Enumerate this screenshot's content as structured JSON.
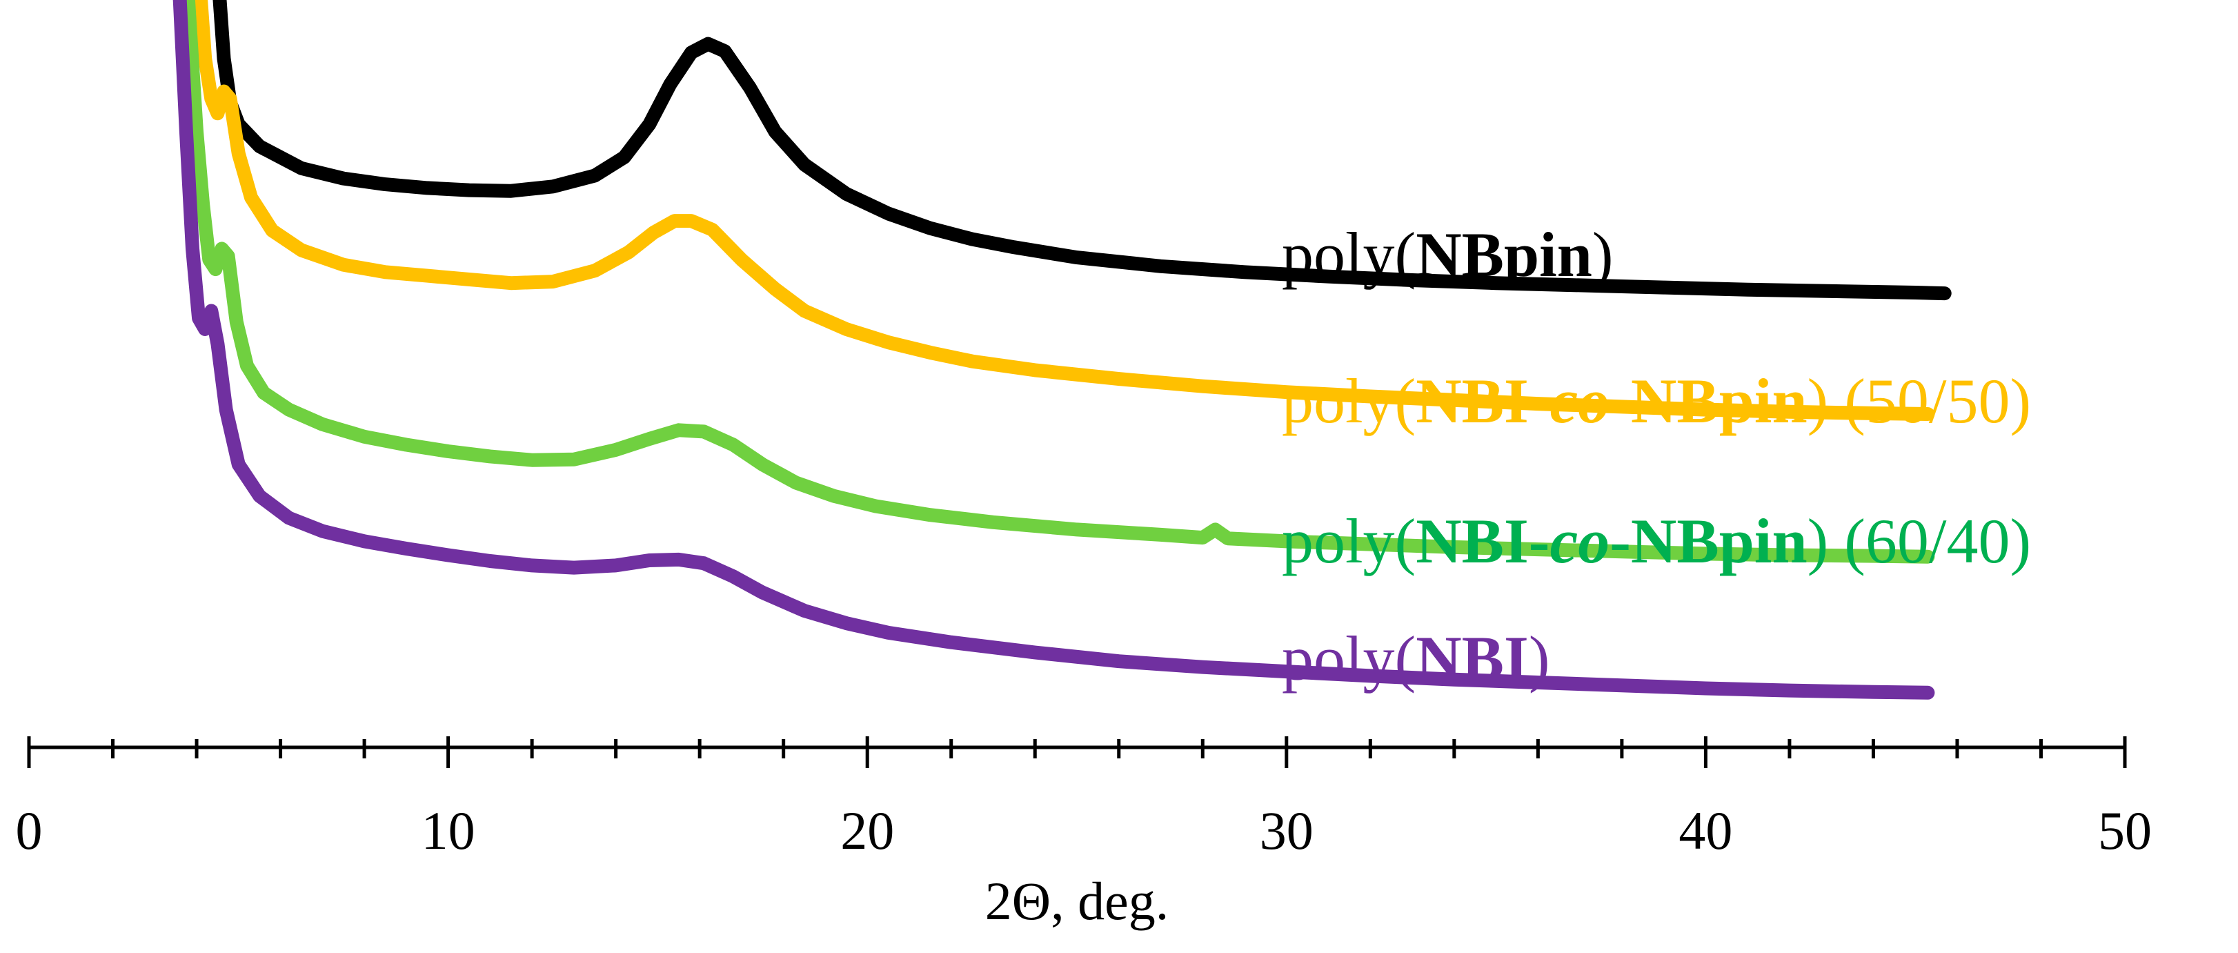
{
  "chart_data": {
    "type": "line",
    "title": "",
    "xlabel": "2Θ, deg.",
    "ylabel": "",
    "xlim": [
      0,
      50
    ],
    "x_major_ticks": [
      0,
      10,
      20,
      30,
      40,
      50
    ],
    "x_minor_step": 2,
    "y_axis_shown": false,
    "grid": false,
    "legend": "inline labels to the right of curves",
    "x_tick_labels": [
      "0",
      "10",
      "20",
      "30",
      "40",
      "50"
    ],
    "series": [
      {
        "id": "nbpin",
        "color": "#000000",
        "label_parts": [
          {
            "text": "poly(",
            "style": "normal"
          },
          {
            "text": "NBpin",
            "style": "bold"
          },
          {
            "text": ")",
            "style": "normal"
          }
        ],
        "points": [
          [
            4.55,
            100
          ],
          [
            4.65,
            92
          ],
          [
            4.8,
            86
          ],
          [
            5.0,
            83
          ],
          [
            5.5,
            80
          ],
          [
            6.5,
            77
          ],
          [
            7.5,
            75.6
          ],
          [
            8.5,
            74.8
          ],
          [
            9.5,
            74.3
          ],
          [
            10.5,
            74
          ],
          [
            11.5,
            73.9
          ],
          [
            12.5,
            74.5
          ],
          [
            13.5,
            76
          ],
          [
            14.2,
            78.5
          ],
          [
            14.8,
            83
          ],
          [
            15.3,
            88.5
          ],
          [
            15.8,
            92.8
          ],
          [
            16.2,
            94
          ],
          [
            16.6,
            93
          ],
          [
            17.2,
            88
          ],
          [
            17.8,
            82
          ],
          [
            18.5,
            77.5
          ],
          [
            19.5,
            73.5
          ],
          [
            20.5,
            70.8
          ],
          [
            21.5,
            68.8
          ],
          [
            22.5,
            67.3
          ],
          [
            23.5,
            66.2
          ],
          [
            25,
            64.8
          ],
          [
            27,
            63.6
          ],
          [
            29,
            62.8
          ],
          [
            31,
            62.2
          ],
          [
            33,
            61.7
          ],
          [
            35,
            61.3
          ],
          [
            37,
            61
          ],
          [
            39,
            60.7
          ],
          [
            41,
            60.4
          ],
          [
            43,
            60.2
          ],
          [
            45,
            60
          ],
          [
            45.7,
            59.9
          ]
        ]
      },
      {
        "id": "co5050",
        "color": "#ffc000",
        "label_parts": [
          {
            "text": "poly(",
            "style": "normal"
          },
          {
            "text": "NBI-",
            "style": "bold"
          },
          {
            "text": "co",
            "style": "bold-italic"
          },
          {
            "text": "-NBpin",
            "style": "bold"
          },
          {
            "text": ") (50/50)",
            "style": "normal"
          }
        ],
        "points": [
          [
            4.1,
            100
          ],
          [
            4.2,
            92
          ],
          [
            4.35,
            86.5
          ],
          [
            4.5,
            84.5
          ],
          [
            4.65,
            87.5
          ],
          [
            4.8,
            86.5
          ],
          [
            5.0,
            79
          ],
          [
            5.3,
            73
          ],
          [
            5.8,
            68.5
          ],
          [
            6.5,
            65.8
          ],
          [
            7.5,
            63.8
          ],
          [
            8.5,
            62.8
          ],
          [
            9.5,
            62.3
          ],
          [
            10.5,
            61.8
          ],
          [
            11.5,
            61.3
          ],
          [
            12.5,
            61.5
          ],
          [
            13.5,
            63
          ],
          [
            14.3,
            65.5
          ],
          [
            14.9,
            68.2
          ],
          [
            15.4,
            69.8
          ],
          [
            15.8,
            69.8
          ],
          [
            16.3,
            68.6
          ],
          [
            17,
            64.5
          ],
          [
            17.8,
            60.5
          ],
          [
            18.5,
            57.5
          ],
          [
            19.5,
            55
          ],
          [
            20.5,
            53.2
          ],
          [
            21.5,
            51.8
          ],
          [
            22.5,
            50.6
          ],
          [
            24,
            49.4
          ],
          [
            26,
            48.2
          ],
          [
            28,
            47.2
          ],
          [
            30,
            46.4
          ],
          [
            32,
            45.8
          ],
          [
            34,
            45.3
          ],
          [
            36,
            44.8
          ],
          [
            38,
            44.4
          ],
          [
            40,
            44
          ],
          [
            42,
            43.7
          ],
          [
            44,
            43.5
          ],
          [
            45.3,
            43.4
          ]
        ]
      },
      {
        "id": "co6040",
        "color": "#70d040",
        "label_color": "#00b050",
        "label_parts": [
          {
            "text": "poly(",
            "style": "normal"
          },
          {
            "text": "NBI-",
            "style": "bold"
          },
          {
            "text": "co",
            "style": "bold-italic"
          },
          {
            "text": "-NBpin",
            "style": "bold"
          },
          {
            "text": ") (60/40)",
            "style": "normal"
          }
        ],
        "points": [
          [
            3.8,
            100
          ],
          [
            4.0,
            82
          ],
          [
            4.15,
            72
          ],
          [
            4.3,
            64.5
          ],
          [
            4.45,
            63.2
          ],
          [
            4.6,
            66
          ],
          [
            4.75,
            65
          ],
          [
            4.95,
            56
          ],
          [
            5.2,
            50
          ],
          [
            5.6,
            46.3
          ],
          [
            6.2,
            44
          ],
          [
            7,
            42
          ],
          [
            8,
            40.3
          ],
          [
            9,
            39.2
          ],
          [
            10,
            38.3
          ],
          [
            11,
            37.6
          ],
          [
            12,
            37.1
          ],
          [
            13,
            37.2
          ],
          [
            14,
            38.5
          ],
          [
            14.8,
            40
          ],
          [
            15.5,
            41.2
          ],
          [
            16.1,
            41
          ],
          [
            16.8,
            39.2
          ],
          [
            17.5,
            36.5
          ],
          [
            18.3,
            34
          ],
          [
            19.2,
            32.2
          ],
          [
            20.2,
            30.8
          ],
          [
            21.5,
            29.6
          ],
          [
            23,
            28.6
          ],
          [
            25,
            27.6
          ],
          [
            27,
            26.9
          ],
          [
            28,
            26.5
          ],
          [
            28.3,
            27.6
          ],
          [
            28.6,
            26.4
          ],
          [
            30,
            26
          ],
          [
            32,
            25.6
          ],
          [
            34,
            25.2
          ],
          [
            36,
            24.9
          ],
          [
            38,
            24.6
          ],
          [
            40,
            24.3
          ],
          [
            42,
            24.1
          ],
          [
            44,
            24
          ],
          [
            45.3,
            23.9
          ]
        ]
      },
      {
        "id": "nbi",
        "color": "#7030a0",
        "label_parts": [
          {
            "text": "poly(",
            "style": "normal"
          },
          {
            "text": "NBI",
            "style": "bold"
          },
          {
            "text": ")",
            "style": "normal"
          }
        ],
        "points": [
          [
            3.6,
            100
          ],
          [
            3.75,
            82
          ],
          [
            3.9,
            66
          ],
          [
            4.05,
            56.5
          ],
          [
            4.2,
            55
          ],
          [
            4.35,
            57.5
          ],
          [
            4.5,
            53
          ],
          [
            4.7,
            44
          ],
          [
            5.0,
            36.5
          ],
          [
            5.5,
            32.2
          ],
          [
            6.2,
            29.2
          ],
          [
            7,
            27.4
          ],
          [
            8,
            26
          ],
          [
            9,
            25
          ],
          [
            10,
            24.1
          ],
          [
            11,
            23.3
          ],
          [
            12,
            22.7
          ],
          [
            13,
            22.4
          ],
          [
            14,
            22.7
          ],
          [
            14.8,
            23.4
          ],
          [
            15.5,
            23.5
          ],
          [
            16.1,
            23
          ],
          [
            16.8,
            21.2
          ],
          [
            17.5,
            19
          ],
          [
            18.5,
            16.5
          ],
          [
            19.5,
            14.8
          ],
          [
            20.5,
            13.5
          ],
          [
            22,
            12.2
          ],
          [
            24,
            10.8
          ],
          [
            26,
            9.6
          ],
          [
            28,
            8.8
          ],
          [
            30,
            8.2
          ],
          [
            32,
            7.6
          ],
          [
            34,
            7.1
          ],
          [
            36,
            6.7
          ],
          [
            38,
            6.3
          ],
          [
            40,
            5.9
          ],
          [
            42,
            5.6
          ],
          [
            44,
            5.4
          ],
          [
            45.3,
            5.3
          ]
        ]
      }
    ]
  }
}
